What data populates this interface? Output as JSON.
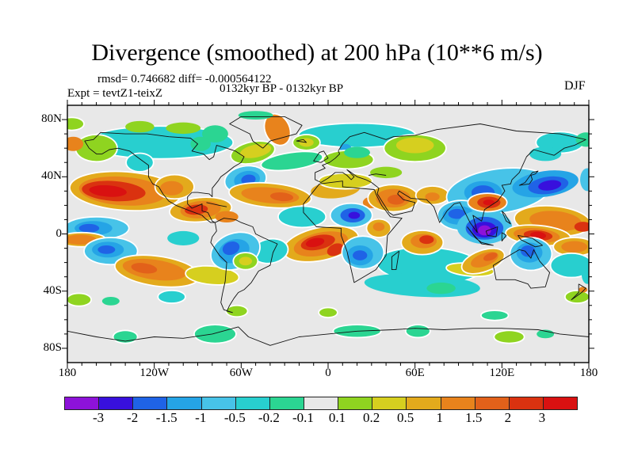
{
  "header": {
    "title": "Divergence (smoothed) at 200 hPa (10**6 m/s)",
    "stats": "rmsd= 0.746682 diff= -0.000564122",
    "experiment": "Expt = tevtZ1-teixZ",
    "period": "0132kyr BP - 0132kyr BP",
    "season": "DJF"
  },
  "axes": {
    "x_ticks": [
      {
        "label": "180",
        "lon": -180
      },
      {
        "label": "120W",
        "lon": -120
      },
      {
        "label": "60W",
        "lon": -60
      },
      {
        "label": "0",
        "lon": 0
      },
      {
        "label": "60E",
        "lon": 60
      },
      {
        "label": "120E",
        "lon": 120
      },
      {
        "label": "180",
        "lon": 180
      }
    ],
    "y_ticks": [
      {
        "label": "80N",
        "lat": 80
      },
      {
        "label": "40N",
        "lat": 40
      },
      {
        "label": "0",
        "lat": 0
      },
      {
        "label": "40S",
        "lat": -40
      },
      {
        "label": "80S",
        "lat": -80
      }
    ],
    "minor_step_deg": 10
  },
  "chart_data": {
    "type": "heatmap",
    "title": "Divergence (smoothed) at 200 hPa (10**6 m/s)",
    "subtitle_stats": "rmsd= 0.746682 diff= -0.000564122",
    "experiment": "Expt = tevtZ1-teixZ",
    "period": "0132kyr BP - 0132kyr BP",
    "season": "DJF",
    "projection": "equirectangular global map with coastlines",
    "lon_range": [
      -180,
      180
    ],
    "lat_range": [
      -90,
      90
    ],
    "x_tick_labels": [
      "180",
      "120W",
      "60W",
      "0",
      "60E",
      "120E",
      "180"
    ],
    "y_tick_labels": [
      "80N",
      "40N",
      "0",
      "40S",
      "80S"
    ],
    "contour_levels": [
      -3,
      -2,
      -1.5,
      -1,
      -0.5,
      -0.2,
      -0.1,
      0.1,
      0.2,
      0.5,
      1,
      1.5,
      2,
      3
    ],
    "colorbar_labels": [
      "-3",
      "-2",
      "-1.5",
      "-1",
      "-0.5",
      "-0.2",
      "-0.1",
      "0.1",
      "0.2",
      "0.5",
      "1",
      "1.5",
      "2",
      "3"
    ],
    "band_colors": [
      "#8d12d9",
      "#3810dd",
      "#1f63e6",
      "#25a4e6",
      "#47c3e8",
      "#28cfcf",
      "#2bd592",
      "#e8e8e8",
      "#8fd420",
      "#d6cf1f",
      "#e3aa1c",
      "#e8831c",
      "#e2611a",
      "#da3210",
      "#d91111"
    ],
    "background_color": "#e8e8e8",
    "feature_format": "[lon, lat, rx_deg, ry_deg, rotation_deg, band_color_index, white_halo]",
    "features": [
      [
        -116,
        64,
        50,
        11,
        0,
        5,
        1
      ],
      [
        -100,
        74,
        12,
        4,
        0,
        8,
        0
      ],
      [
        -78,
        70,
        9,
        6,
        0,
        6,
        0
      ],
      [
        -88,
        63,
        7,
        5,
        0,
        6,
        0
      ],
      [
        -160,
        60,
        14,
        9,
        0,
        8,
        1
      ],
      [
        -176,
        63,
        7,
        5,
        0,
        11,
        0
      ],
      [
        -177,
        77,
        8,
        4,
        0,
        8,
        1
      ],
      [
        -130,
        75,
        10,
        4,
        0,
        8,
        0
      ],
      [
        -35,
        73,
        8,
        11,
        -25,
        11,
        1
      ],
      [
        -50,
        83,
        12,
        3,
        0,
        6,
        0
      ],
      [
        20,
        69,
        40,
        8,
        0,
        5,
        1
      ],
      [
        12,
        60,
        4,
        3,
        0,
        3,
        0
      ],
      [
        -52,
        57,
        15,
        7,
        -12,
        8,
        1
      ],
      [
        -50,
        58,
        11,
        4.5,
        -12,
        9,
        0
      ],
      [
        -15,
        64,
        9,
        5,
        0,
        8,
        1
      ],
      [
        -15,
        64,
        5,
        3,
        0,
        9,
        0
      ],
      [
        160,
        64,
        16,
        7,
        0,
        5,
        1
      ],
      [
        150,
        56,
        11,
        5,
        0,
        5,
        0
      ],
      [
        178,
        66,
        7,
        5,
        0,
        6,
        0
      ],
      [
        60,
        60,
        21,
        9,
        0,
        8,
        1
      ],
      [
        60,
        62,
        13,
        5.5,
        0,
        9,
        0
      ],
      [
        14,
        52,
        17,
        6,
        0,
        8,
        1
      ],
      [
        20,
        57,
        9,
        4,
        0,
        6,
        0
      ],
      [
        40,
        43,
        11,
        4,
        0,
        8,
        0
      ],
      [
        -140,
        30,
        38,
        13,
        4,
        10,
        1
      ],
      [
        -142,
        30,
        30,
        10,
        4,
        11,
        0
      ],
      [
        -148,
        30,
        22,
        7,
        4,
        13,
        0
      ],
      [
        -152,
        30,
        13,
        4,
        4,
        14,
        0
      ],
      [
        -130,
        50,
        9,
        6,
        0,
        5,
        1
      ],
      [
        -106,
        33,
        13,
        8,
        0,
        10,
        1
      ],
      [
        -108,
        32,
        8,
        5,
        0,
        11,
        0
      ],
      [
        -57,
        38,
        14,
        9,
        -10,
        4,
        1
      ],
      [
        -56,
        38,
        9,
        6,
        -10,
        3,
        0
      ],
      [
        -55,
        38,
        5,
        3.5,
        -10,
        2,
        0
      ],
      [
        -25,
        51,
        21,
        5.5,
        -8,
        6,
        1
      ],
      [
        -40,
        27,
        28,
        8,
        5,
        10,
        1
      ],
      [
        -40,
        27,
        20,
        5.5,
        5,
        11,
        0
      ],
      [
        -32,
        26,
        8,
        3,
        5,
        12,
        0
      ],
      [
        5,
        31,
        17,
        6,
        -5,
        10,
        0
      ],
      [
        12,
        37,
        18,
        5,
        0,
        9,
        1
      ],
      [
        30,
        22,
        6,
        4,
        0,
        11,
        0
      ],
      [
        45,
        25,
        17,
        9,
        0,
        10,
        1
      ],
      [
        45,
        25,
        12,
        6.5,
        0,
        11,
        0
      ],
      [
        47,
        24,
        6,
        3.5,
        0,
        12,
        0
      ],
      [
        72,
        27,
        11,
        6,
        0,
        10,
        1
      ],
      [
        72,
        26,
        5,
        3,
        0,
        11,
        0
      ],
      [
        118,
        30,
        36,
        15,
        -8,
        4,
        1
      ],
      [
        150,
        35,
        23,
        9,
        -8,
        3,
        0
      ],
      [
        152,
        34,
        14,
        6,
        -8,
        2,
        0
      ],
      [
        153,
        34,
        8,
        3.5,
        -8,
        1,
        0
      ],
      [
        107,
        29,
        13,
        8,
        0,
        3,
        0
      ],
      [
        107,
        29,
        8,
        5,
        0,
        2,
        0
      ],
      [
        92,
        13,
        16,
        10,
        0,
        4,
        1
      ],
      [
        90,
        13,
        11,
        6.5,
        0,
        3,
        0
      ],
      [
        89,
        14,
        6,
        3.5,
        0,
        2,
        0
      ],
      [
        108,
        5,
        19,
        12,
        0,
        4,
        0
      ],
      [
        108,
        4,
        13,
        8,
        0,
        2,
        0
      ],
      [
        108,
        3,
        8.5,
        5.5,
        0,
        1,
        0
      ],
      [
        108,
        2.5,
        4.5,
        3.5,
        0,
        0,
        0
      ],
      [
        110,
        22,
        13,
        6,
        0,
        11,
        1
      ],
      [
        111,
        22,
        8,
        4,
        0,
        13,
        0
      ],
      [
        111,
        22,
        4,
        2,
        0,
        14,
        0
      ],
      [
        155,
        9,
        26,
        10,
        5,
        10,
        1
      ],
      [
        157,
        9,
        18,
        7,
        5,
        11,
        0
      ],
      [
        176,
        5,
        6,
        3.5,
        0,
        13,
        0
      ],
      [
        179,
        38,
        5,
        8,
        0,
        4,
        0
      ],
      [
        -18,
        12,
        16,
        7,
        0,
        5,
        1
      ],
      [
        16,
        13,
        14,
        8,
        0,
        4,
        1
      ],
      [
        17,
        13,
        8.5,
        5,
        0,
        2,
        0
      ],
      [
        18,
        13,
        4,
        2.5,
        0,
        1,
        0
      ],
      [
        35,
        4,
        8,
        6,
        0,
        10,
        1
      ],
      [
        35,
        5,
        4,
        3,
        0,
        11,
        0
      ],
      [
        -5,
        -7,
        26,
        11,
        -12,
        10,
        1
      ],
      [
        -5,
        -7,
        19,
        8,
        -12,
        11,
        0
      ],
      [
        -7,
        -6,
        12,
        5,
        -12,
        13,
        0
      ],
      [
        -9,
        -6,
        6.5,
        3,
        -12,
        14,
        0
      ],
      [
        5,
        -11,
        6,
        4,
        -25,
        13,
        0
      ],
      [
        70,
        -22,
        36,
        12,
        3,
        5,
        1
      ],
      [
        65,
        -36,
        40,
        8,
        3,
        5,
        0
      ],
      [
        78,
        -38,
        10,
        4,
        0,
        6,
        0
      ],
      [
        24,
        -13,
        14,
        11,
        0,
        4,
        1
      ],
      [
        22,
        -15,
        9,
        7,
        0,
        3,
        0
      ],
      [
        22,
        -15,
        5,
        3.5,
        0,
        2,
        0
      ],
      [
        65,
        -6,
        14,
        8,
        0,
        10,
        1
      ],
      [
        66,
        -5,
        9,
        5,
        0,
        11,
        0
      ],
      [
        68,
        -4,
        5,
        3,
        0,
        13,
        0
      ],
      [
        98,
        -25,
        16,
        4,
        5,
        9,
        1
      ],
      [
        107,
        -19,
        15,
        7,
        -20,
        10,
        1
      ],
      [
        108,
        -18,
        10,
        4.5,
        -20,
        11,
        0
      ],
      [
        112,
        -16,
        5,
        2.5,
        -20,
        12,
        0
      ],
      [
        145,
        -1,
        22,
        6.5,
        5,
        10,
        1
      ],
      [
        144,
        -1,
        16,
        5,
        5,
        11,
        0
      ],
      [
        145,
        -1,
        10,
        3.5,
        5,
        13,
        0
      ],
      [
        145,
        -1,
        5.5,
        2.5,
        5,
        14,
        0
      ],
      [
        140,
        -14,
        14,
        11,
        0,
        4,
        1
      ],
      [
        139,
        -13,
        9,
        7,
        0,
        3,
        0
      ],
      [
        138,
        -12,
        5,
        4,
        0,
        2,
        0
      ],
      [
        170,
        -9,
        14,
        6,
        0,
        10,
        1
      ],
      [
        170,
        -9,
        9,
        4,
        0,
        11,
        0
      ],
      [
        168,
        -22,
        14,
        8,
        0,
        5,
        1
      ],
      [
        172,
        -44,
        8,
        4,
        0,
        8,
        1
      ],
      [
        176,
        -39,
        3,
        2,
        0,
        11,
        0
      ],
      [
        -160,
        4,
        22,
        7.5,
        0,
        4,
        1
      ],
      [
        -162,
        4,
        13,
        5,
        0,
        3,
        0
      ],
      [
        -165,
        4,
        7,
        3,
        0,
        2,
        0
      ],
      [
        -170,
        -4,
        16,
        4.5,
        0,
        10,
        1
      ],
      [
        -171,
        -4,
        11,
        3.5,
        0,
        11,
        0
      ],
      [
        -150,
        -12,
        18,
        9,
        0,
        4,
        1
      ],
      [
        -152,
        -11,
        11,
        5.5,
        0,
        3,
        0
      ],
      [
        -153,
        -11,
        6,
        3,
        0,
        2,
        0
      ],
      [
        -100,
        -3,
        11,
        5,
        0,
        5,
        0
      ],
      [
        -118,
        -26,
        29,
        10,
        8,
        10,
        1
      ],
      [
        -120,
        -25,
        22,
        7,
        8,
        11,
        0
      ],
      [
        -127,
        -24,
        9,
        3.5,
        8,
        12,
        0
      ],
      [
        -80,
        -29,
        18,
        6,
        5,
        9,
        1
      ],
      [
        -40,
        -12,
        12,
        8,
        -10,
        5,
        1
      ],
      [
        -64,
        -12,
        17,
        12,
        -20,
        4,
        1
      ],
      [
        -65,
        -12,
        11,
        8,
        -20,
        3,
        0
      ],
      [
        -67,
        -10,
        6,
        4.5,
        -20,
        2,
        0
      ],
      [
        -57,
        -19,
        8,
        5.5,
        0,
        8,
        1
      ],
      [
        -57,
        -19,
        4.5,
        3,
        0,
        9,
        0
      ],
      [
        -88,
        17,
        21,
        8,
        -5,
        10,
        1
      ],
      [
        -88,
        17,
        14,
        6,
        -5,
        11,
        0
      ],
      [
        -91,
        17,
        8,
        3.5,
        -5,
        13,
        0
      ],
      [
        -70,
        12,
        8,
        4,
        0,
        11,
        0
      ],
      [
        20,
        -68,
        16,
        4,
        0,
        6,
        1
      ],
      [
        62,
        -68,
        8,
        4,
        0,
        6,
        1
      ],
      [
        125,
        -72,
        10,
        4,
        0,
        8,
        1
      ],
      [
        150,
        -70,
        6,
        3,
        0,
        6,
        0
      ],
      [
        -78,
        -70,
        14,
        6,
        0,
        6,
        1
      ],
      [
        -140,
        -72,
        8,
        4,
        0,
        6,
        1
      ],
      [
        -172,
        -46,
        8,
        4,
        0,
        8,
        1
      ],
      [
        -150,
        -47,
        6,
        3,
        0,
        6,
        0
      ],
      [
        -108,
        -44,
        9,
        4,
        0,
        5,
        1
      ],
      [
        115,
        -57,
        9,
        3,
        0,
        6,
        1
      ],
      [
        0,
        -55,
        6,
        3,
        0,
        8,
        1
      ],
      [
        -63,
        -54,
        7,
        3.5,
        0,
        8,
        1
      ],
      [
        179,
        -28,
        4,
        7,
        0,
        5,
        0
      ]
    ]
  }
}
